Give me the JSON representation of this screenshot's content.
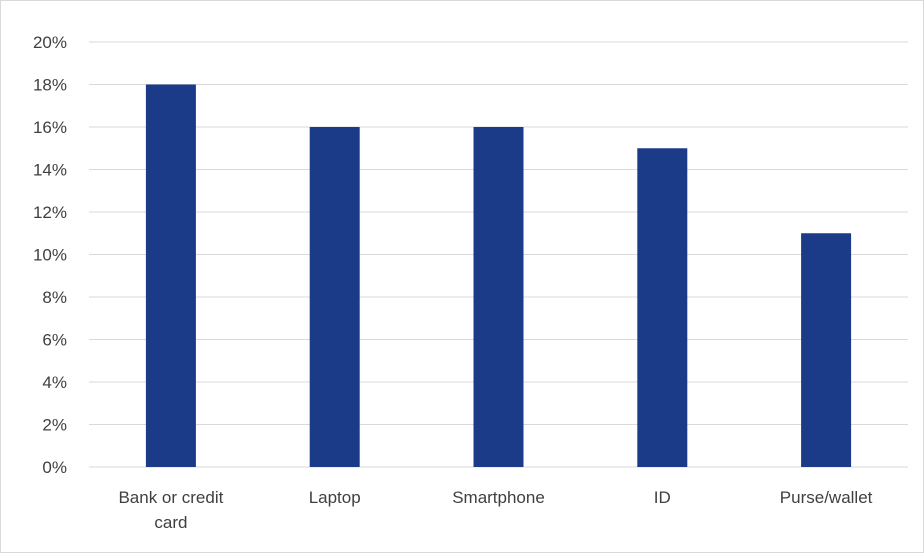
{
  "chart_data": {
    "type": "bar",
    "categories": [
      "Bank or credit card",
      "Laptop",
      "Smartphone",
      "ID",
      "Purse/wallet"
    ],
    "category_label_lines": [
      [
        "Bank or credit",
        "card"
      ],
      [
        "Laptop"
      ],
      [
        "Smartphone"
      ],
      [
        "ID"
      ],
      [
        "Purse/wallet"
      ]
    ],
    "values": [
      18,
      16,
      16,
      15,
      11
    ],
    "ylim": [
      0,
      20
    ],
    "y_ticks": [
      0,
      2,
      4,
      6,
      8,
      10,
      12,
      14,
      16,
      18,
      20
    ],
    "y_tick_labels": [
      "0%",
      "2%",
      "4%",
      "6%",
      "8%",
      "10%",
      "12%",
      "14%",
      "16%",
      "18%",
      "20%"
    ],
    "title": "",
    "xlabel": "",
    "ylabel": "",
    "grid": true,
    "legend": "none",
    "colors": {
      "bar": "#1b3a87",
      "grid": "#d9d9d9",
      "border": "#d9d9d9",
      "text": "#404040"
    }
  }
}
